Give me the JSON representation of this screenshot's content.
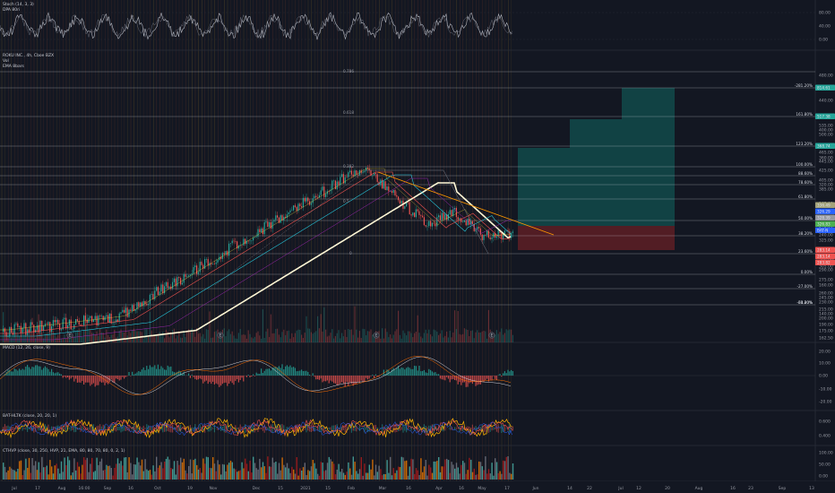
{
  "theme": {
    "background": "#131722",
    "grid": "#1f2433",
    "axis_text": "#9598a1",
    "bull": "#26a69a",
    "bear": "#ef5350",
    "vline": "#7a3d2a",
    "vline_alt": "#8a6a2a",
    "fib_line": "#d1d4dc",
    "long_profit_zone": "#124a4a",
    "long_loss_zone": "#5a1e25",
    "ema_white": "#fff8d6",
    "macd_line": "#2962ff",
    "signal_line": "#ff6d00",
    "stoch_k": "#b2b5be"
  },
  "panes": {
    "stoch": {
      "title": "Stoch (14, 3, 3)",
      "title2": "DPA 80ri",
      "axis": [
        "80.00",
        "40.00",
        "0.00"
      ]
    },
    "price": {
      "symbol": "ROKU INC., 4h, Cboe BZX",
      "title2": "Vol",
      "title3": "EMA 8bars",
      "axis": [
        "480.00",
        "440.00",
        "400.00",
        "360.00",
        "320.00",
        "280.00",
        "240.00",
        "200.00",
        "160.00",
        "140.00"
      ],
      "axis_extra": [
        "535.00",
        "500.00",
        "465.00",
        "445.00",
        "425.00",
        "405.00",
        "385.00",
        "365.00",
        "345.00",
        "325.00",
        "305.00",
        "290.00",
        "275.00",
        "260.00",
        "245.00",
        "230.00",
        "215.00",
        "200.00",
        "190.00",
        "175.00",
        "162.50"
      ],
      "right_fib_labels": [
        "-281.20%",
        "161.80%",
        "123.20%",
        "100.00%",
        "88.60%",
        "78.60%",
        "61.80%",
        "50.00%",
        "38.20%",
        "23.60%",
        "0.00%",
        "-27.00%",
        "-38.20%",
        "-61.80%"
      ],
      "left_fib_labels": [
        "0.786",
        "0.618",
        "0.382",
        "0.5",
        "0"
      ],
      "price_tags": [
        "814.61",
        "517.38",
        "368.74",
        "336.49",
        "326.29",
        "328.39",
        "326.83",
        "BAT-N",
        "283.14",
        "283.14",
        "283.82"
      ]
    },
    "macd": {
      "title": "MACD (12, 26, close, 9)",
      "axis": [
        "20.00",
        "10.00",
        "0.00",
        "-10.00",
        "-20.00"
      ]
    },
    "bbwp": {
      "title": "BAT-HLTK (close, 20, 20, 1)",
      "axis": [
        "0.600",
        "0.400"
      ]
    },
    "cthvp": {
      "title": "CTHVP (close, 30, 250, HVP, 21, EMA, 80, 80, 70, 80, 0, 2, 1)",
      "axis": [
        "100.00",
        "50.00",
        "0.00"
      ]
    }
  },
  "time_axis": [
    "Jul",
    "17",
    "Aug",
    "16:00",
    "Sep",
    "16",
    "Oct",
    "19",
    "Nov",
    "Dec",
    "15",
    "2021",
    "15",
    "Feb",
    "Mar",
    "16",
    "Apr",
    "16",
    "May",
    "17",
    "Jun",
    "14",
    "22",
    "Jul",
    "12",
    "20",
    "Aug",
    "16",
    "23",
    "Sep",
    "13"
  ],
  "event_markers": [
    "E",
    "E",
    "E",
    "E"
  ]
}
